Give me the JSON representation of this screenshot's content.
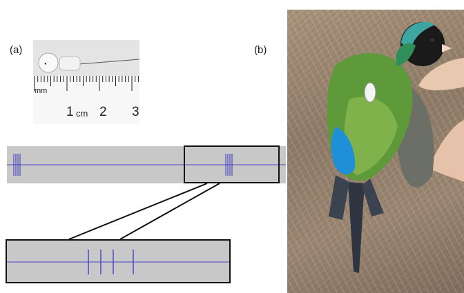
{
  "panels": {
    "a_label": "(a)",
    "b_label": "(b)"
  },
  "transmitter": {
    "ruler_unit_mm": "mm",
    "ruler_1": "1",
    "ruler_unit_cm": "cm",
    "ruler_2": "2",
    "ruler_3": "3"
  },
  "colors": {
    "signal_line": "#4b45c8",
    "strip_background": "#c8c8c8",
    "outline": "#111111"
  }
}
